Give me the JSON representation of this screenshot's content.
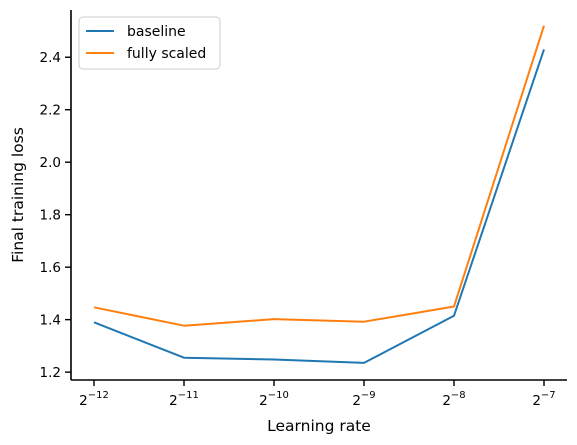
{
  "chart_data": {
    "type": "line",
    "title": "",
    "xlabel": "Learning rate",
    "ylabel": "Final training loss",
    "x_scale": "log2",
    "x": [
      -12,
      -11,
      -10,
      -9,
      -8,
      -7
    ],
    "x_tick_labels": [
      {
        "base": "2",
        "exp": "−12"
      },
      {
        "base": "2",
        "exp": "−11"
      },
      {
        "base": "2",
        "exp": "−10"
      },
      {
        "base": "2",
        "exp": "−9"
      },
      {
        "base": "2",
        "exp": "−8"
      },
      {
        "base": "2",
        "exp": "−7"
      }
    ],
    "y_ticks": [
      1.2,
      1.4,
      1.6,
      1.8,
      2.0,
      2.2,
      2.4
    ],
    "y_tick_labels": [
      "1.2",
      "1.4",
      "1.6",
      "1.8",
      "2.0",
      "2.2",
      "2.4"
    ],
    "ylim": [
      1.17,
      2.58
    ],
    "grid": false,
    "legend_position": "top-left",
    "series": [
      {
        "name": "baseline",
        "color": "#1f77b4",
        "values": [
          1.39,
          1.255,
          1.248,
          1.235,
          1.415,
          2.43
        ]
      },
      {
        "name": "fully scaled",
        "color": "#ff7f0e",
        "values": [
          1.447,
          1.377,
          1.402,
          1.392,
          1.45,
          2.52
        ]
      }
    ]
  }
}
